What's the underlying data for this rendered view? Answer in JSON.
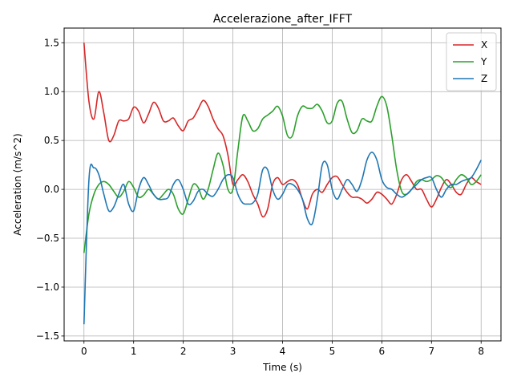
{
  "chart_data": {
    "type": "line",
    "title": "Accelerazione_after_IFFT",
    "xlabel": "Time (s)",
    "ylabel": "Acceleration (m/s^2)",
    "xlim": [
      -0.4,
      8.4
    ],
    "ylim": [
      -1.55,
      1.65
    ],
    "xticks": [
      0,
      1,
      2,
      3,
      4,
      5,
      6,
      7,
      8
    ],
    "xtick_labels": [
      "0",
      "1",
      "2",
      "3",
      "4",
      "5",
      "6",
      "7",
      "8"
    ],
    "yticks": [
      -1.5,
      -1.0,
      -0.5,
      0.0,
      0.5,
      1.0,
      1.5
    ],
    "ytick_labels": [
      "−1.5",
      "−1.0",
      "−0.5",
      "0.0",
      "0.5",
      "1.0",
      "1.5"
    ],
    "grid": true,
    "legend_position": "top-right",
    "x": [
      0,
      0.1,
      0.2,
      0.3,
      0.4,
      0.5,
      0.6,
      0.7,
      0.8,
      0.9,
      1.0,
      1.1,
      1.2,
      1.3,
      1.4,
      1.5,
      1.6,
      1.7,
      1.8,
      1.9,
      2.0,
      2.1,
      2.2,
      2.3,
      2.4,
      2.5,
      2.6,
      2.7,
      2.8,
      2.9,
      3.0,
      3.1,
      3.2,
      3.3,
      3.4,
      3.5,
      3.6,
      3.7,
      3.8,
      3.9,
      4.0,
      4.1,
      4.2,
      4.3,
      4.4,
      4.5,
      4.6,
      4.7,
      4.8,
      4.9,
      5.0,
      5.1,
      5.2,
      5.3,
      5.4,
      5.5,
      5.6,
      5.7,
      5.8,
      5.9,
      6.0,
      6.1,
      6.2,
      6.3,
      6.4,
      6.5,
      6.6,
      6.7,
      6.8,
      6.9,
      7.0,
      7.1,
      7.2,
      7.3,
      7.4,
      7.5,
      7.6,
      7.7,
      7.8,
      7.9,
      8.0
    ],
    "series": [
      {
        "name": "X",
        "color": "#d62728",
        "values": [
          1.5,
          0.9,
          0.72,
          1.0,
          0.78,
          0.5,
          0.55,
          0.7,
          0.7,
          0.72,
          0.84,
          0.8,
          0.68,
          0.77,
          0.89,
          0.83,
          0.7,
          0.7,
          0.73,
          0.65,
          0.6,
          0.7,
          0.73,
          0.82,
          0.91,
          0.85,
          0.72,
          0.62,
          0.55,
          0.35,
          0.05,
          0.1,
          0.15,
          0.08,
          -0.05,
          -0.15,
          -0.28,
          -0.2,
          0.05,
          0.12,
          0.05,
          0.08,
          0.1,
          0.05,
          -0.1,
          -0.2,
          -0.05,
          0.0,
          -0.03,
          0.05,
          0.12,
          0.13,
          0.05,
          -0.03,
          -0.08,
          -0.08,
          -0.1,
          -0.14,
          -0.1,
          -0.03,
          -0.05,
          -0.1,
          -0.15,
          -0.05,
          0.1,
          0.15,
          0.08,
          0.0,
          0.0,
          -0.1,
          -0.18,
          -0.1,
          0.02,
          0.1,
          0.05,
          -0.03,
          -0.05,
          0.05,
          0.12,
          0.08,
          0.05
        ]
      },
      {
        "name": "Y",
        "color": "#2ca02c",
        "values": [
          -0.65,
          -0.25,
          -0.05,
          0.05,
          0.08,
          0.05,
          -0.02,
          -0.08,
          -0.02,
          0.08,
          0.02,
          -0.08,
          -0.06,
          0.0,
          -0.05,
          -0.1,
          -0.05,
          0.0,
          -0.05,
          -0.2,
          -0.25,
          -0.1,
          0.05,
          0.02,
          -0.1,
          0.0,
          0.2,
          0.37,
          0.25,
          0.0,
          0.0,
          0.4,
          0.75,
          0.7,
          0.6,
          0.62,
          0.72,
          0.76,
          0.8,
          0.85,
          0.75,
          0.55,
          0.55,
          0.75,
          0.85,
          0.83,
          0.83,
          0.87,
          0.8,
          0.68,
          0.7,
          0.88,
          0.9,
          0.72,
          0.58,
          0.6,
          0.72,
          0.7,
          0.7,
          0.85,
          0.95,
          0.85,
          0.55,
          0.2,
          -0.02,
          -0.05,
          0.0,
          0.08,
          0.1,
          0.08,
          0.1,
          0.14,
          0.12,
          0.05,
          0.02,
          0.1,
          0.15,
          0.12,
          0.05,
          0.08,
          0.15
        ]
      },
      {
        "name": "Z",
        "color": "#1f77b4",
        "values": [
          -1.38,
          0.1,
          0.22,
          0.15,
          -0.05,
          -0.22,
          -0.18,
          -0.05,
          0.05,
          -0.15,
          -0.22,
          0.0,
          0.12,
          0.05,
          -0.05,
          -0.1,
          -0.1,
          -0.08,
          0.05,
          0.1,
          0.0,
          -0.15,
          -0.12,
          -0.02,
          0.0,
          -0.05,
          -0.07,
          0.0,
          0.1,
          0.15,
          0.12,
          -0.05,
          -0.14,
          -0.15,
          -0.14,
          -0.05,
          0.2,
          0.2,
          0.0,
          -0.1,
          -0.05,
          0.05,
          0.05,
          0.0,
          -0.1,
          -0.3,
          -0.35,
          -0.1,
          0.25,
          0.25,
          0.0,
          -0.1,
          0.0,
          0.1,
          0.05,
          -0.02,
          0.1,
          0.3,
          0.38,
          0.3,
          0.1,
          0.02,
          0.0,
          -0.05,
          -0.08,
          -0.05,
          0.0,
          0.05,
          0.1,
          0.12,
          0.12,
          0.0,
          -0.08,
          0.0,
          0.05,
          0.05,
          0.08,
          0.1,
          0.12,
          0.2,
          0.3
        ]
      }
    ]
  }
}
